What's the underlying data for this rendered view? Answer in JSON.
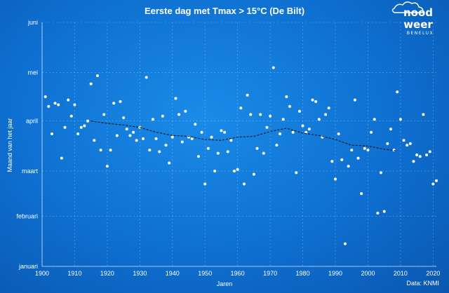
{
  "chart_data": {
    "type": "scatter",
    "title": "Eerste dag met Tmax > 15°C (De Bilt)",
    "xlabel": "Jaren",
    "ylabel": "Maand van het jaar",
    "source": "Data: KNMI",
    "xlim": [
      1900,
      2021
    ],
    "ylim": [
      1,
      152
    ],
    "x_ticks": [
      1900,
      1910,
      1920,
      1930,
      1940,
      1950,
      1960,
      1970,
      1980,
      1990,
      2000,
      2010,
      2020
    ],
    "y_ticks": [
      {
        "value": 1,
        "label": "januari"
      },
      {
        "value": 32,
        "label": "februari"
      },
      {
        "value": 60,
        "label": "maart"
      },
      {
        "value": 91,
        "label": "april"
      },
      {
        "value": 121,
        "label": "mei"
      },
      {
        "value": 152,
        "label": "juni"
      }
    ],
    "grid": true,
    "points": [
      {
        "x": 1901,
        "y": 106
      },
      {
        "x": 1902,
        "y": 100
      },
      {
        "x": 1903,
        "y": 83
      },
      {
        "x": 1904,
        "y": 102
      },
      {
        "x": 1905,
        "y": 101
      },
      {
        "x": 1906,
        "y": 68
      },
      {
        "x": 1907,
        "y": 87
      },
      {
        "x": 1908,
        "y": 104
      },
      {
        "x": 1909,
        "y": 94
      },
      {
        "x": 1910,
        "y": 101
      },
      {
        "x": 1911,
        "y": 83
      },
      {
        "x": 1912,
        "y": 87
      },
      {
        "x": 1913,
        "y": 88
      },
      {
        "x": 1914,
        "y": 91
      },
      {
        "x": 1915,
        "y": 114
      },
      {
        "x": 1916,
        "y": 79
      },
      {
        "x": 1917,
        "y": 119
      },
      {
        "x": 1918,
        "y": 73
      },
      {
        "x": 1919,
        "y": 95
      },
      {
        "x": 1920,
        "y": 63
      },
      {
        "x": 1921,
        "y": 73
      },
      {
        "x": 1922,
        "y": 102
      },
      {
        "x": 1923,
        "y": 82
      },
      {
        "x": 1924,
        "y": 103
      },
      {
        "x": 1925,
        "y": 93
      },
      {
        "x": 1926,
        "y": 86
      },
      {
        "x": 1927,
        "y": 82
      },
      {
        "x": 1928,
        "y": 84
      },
      {
        "x": 1929,
        "y": 79
      },
      {
        "x": 1930,
        "y": 87
      },
      {
        "x": 1931,
        "y": 80
      },
      {
        "x": 1932,
        "y": 118
      },
      {
        "x": 1933,
        "y": 73
      },
      {
        "x": 1934,
        "y": 92
      },
      {
        "x": 1935,
        "y": 80
      },
      {
        "x": 1936,
        "y": 72
      },
      {
        "x": 1937,
        "y": 94
      },
      {
        "x": 1938,
        "y": 76
      },
      {
        "x": 1939,
        "y": 65
      },
      {
        "x": 1940,
        "y": 81
      },
      {
        "x": 1941,
        "y": 105
      },
      {
        "x": 1942,
        "y": 95
      },
      {
        "x": 1943,
        "y": 78
      },
      {
        "x": 1944,
        "y": 97
      },
      {
        "x": 1945,
        "y": 81
      },
      {
        "x": 1946,
        "y": 80
      },
      {
        "x": 1947,
        "y": 89
      },
      {
        "x": 1948,
        "y": 69
      },
      {
        "x": 1949,
        "y": 84
      },
      {
        "x": 1950,
        "y": 52
      },
      {
        "x": 1951,
        "y": 74
      },
      {
        "x": 1952,
        "y": 81
      },
      {
        "x": 1953,
        "y": 60
      },
      {
        "x": 1954,
        "y": 71
      },
      {
        "x": 1955,
        "y": 85
      },
      {
        "x": 1956,
        "y": 84
      },
      {
        "x": 1957,
        "y": 72
      },
      {
        "x": 1958,
        "y": 79
      },
      {
        "x": 1959,
        "y": 60
      },
      {
        "x": 1960,
        "y": 61
      },
      {
        "x": 1961,
        "y": 99
      },
      {
        "x": 1962,
        "y": 52
      },
      {
        "x": 1963,
        "y": 107
      },
      {
        "x": 1964,
        "y": 95
      },
      {
        "x": 1965,
        "y": 58
      },
      {
        "x": 1966,
        "y": 74
      },
      {
        "x": 1967,
        "y": 95
      },
      {
        "x": 1968,
        "y": 71
      },
      {
        "x": 1969,
        "y": 87
      },
      {
        "x": 1970,
        "y": 94
      },
      {
        "x": 1971,
        "y": 124
      },
      {
        "x": 1972,
        "y": 76
      },
      {
        "x": 1973,
        "y": 83
      },
      {
        "x": 1974,
        "y": 92
      },
      {
        "x": 1975,
        "y": 106
      },
      {
        "x": 1976,
        "y": 100
      },
      {
        "x": 1977,
        "y": 84
      },
      {
        "x": 1978,
        "y": 59
      },
      {
        "x": 1979,
        "y": 97
      },
      {
        "x": 1980,
        "y": 88
      },
      {
        "x": 1981,
        "y": 84
      },
      {
        "x": 1982,
        "y": 86
      },
      {
        "x": 1983,
        "y": 104
      },
      {
        "x": 1984,
        "y": 103
      },
      {
        "x": 1985,
        "y": 92
      },
      {
        "x": 1986,
        "y": 81
      },
      {
        "x": 1987,
        "y": 95
      },
      {
        "x": 1988,
        "y": 99
      },
      {
        "x": 1989,
        "y": 66
      },
      {
        "x": 1990,
        "y": 55
      },
      {
        "x": 1991,
        "y": 83
      },
      {
        "x": 1992,
        "y": 67
      },
      {
        "x": 1993,
        "y": 15
      },
      {
        "x": 1994,
        "y": 63
      },
      {
        "x": 1995,
        "y": 73
      },
      {
        "x": 1996,
        "y": 104
      },
      {
        "x": 1997,
        "y": 68
      },
      {
        "x": 1998,
        "y": 46
      },
      {
        "x": 1999,
        "y": 74
      },
      {
        "x": 2000,
        "y": 73
      },
      {
        "x": 2001,
        "y": 84
      },
      {
        "x": 2002,
        "y": 92
      },
      {
        "x": 2003,
        "y": 34
      },
      {
        "x": 2004,
        "y": 59
      },
      {
        "x": 2005,
        "y": 35
      },
      {
        "x": 2006,
        "y": 77
      },
      {
        "x": 2007,
        "y": 86
      },
      {
        "x": 2008,
        "y": 73
      },
      {
        "x": 2009,
        "y": 109
      },
      {
        "x": 2010,
        "y": 92
      },
      {
        "x": 2011,
        "y": 79
      },
      {
        "x": 2012,
        "y": 76
      },
      {
        "x": 2013,
        "y": 77
      },
      {
        "x": 2014,
        "y": 66
      },
      {
        "x": 2015,
        "y": 70
      },
      {
        "x": 2016,
        "y": 69
      },
      {
        "x": 2017,
        "y": 95
      },
      {
        "x": 2018,
        "y": 70
      },
      {
        "x": 2019,
        "y": 72
      },
      {
        "x": 2020,
        "y": 52
      },
      {
        "x": 2021,
        "y": 54
      }
    ],
    "trend": [
      {
        "x": 1915,
        "y": 91
      },
      {
        "x": 1920,
        "y": 89.5
      },
      {
        "x": 1925,
        "y": 88.5
      },
      {
        "x": 1930,
        "y": 87
      },
      {
        "x": 1935,
        "y": 84
      },
      {
        "x": 1940,
        "y": 82
      },
      {
        "x": 1945,
        "y": 81.5
      },
      {
        "x": 1950,
        "y": 79.5
      },
      {
        "x": 1955,
        "y": 79
      },
      {
        "x": 1960,
        "y": 81
      },
      {
        "x": 1965,
        "y": 81.5
      },
      {
        "x": 1970,
        "y": 84.5
      },
      {
        "x": 1975,
        "y": 86.5
      },
      {
        "x": 1980,
        "y": 83.5
      },
      {
        "x": 1985,
        "y": 82
      },
      {
        "x": 1990,
        "y": 79.5
      },
      {
        "x": 1995,
        "y": 76
      },
      {
        "x": 2000,
        "y": 75.5
      },
      {
        "x": 2005,
        "y": 73.5
      },
      {
        "x": 2009,
        "y": 72.5
      }
    ]
  },
  "logo": {
    "line1": "nood",
    "line2": "weer",
    "line3": "BENELUX"
  }
}
